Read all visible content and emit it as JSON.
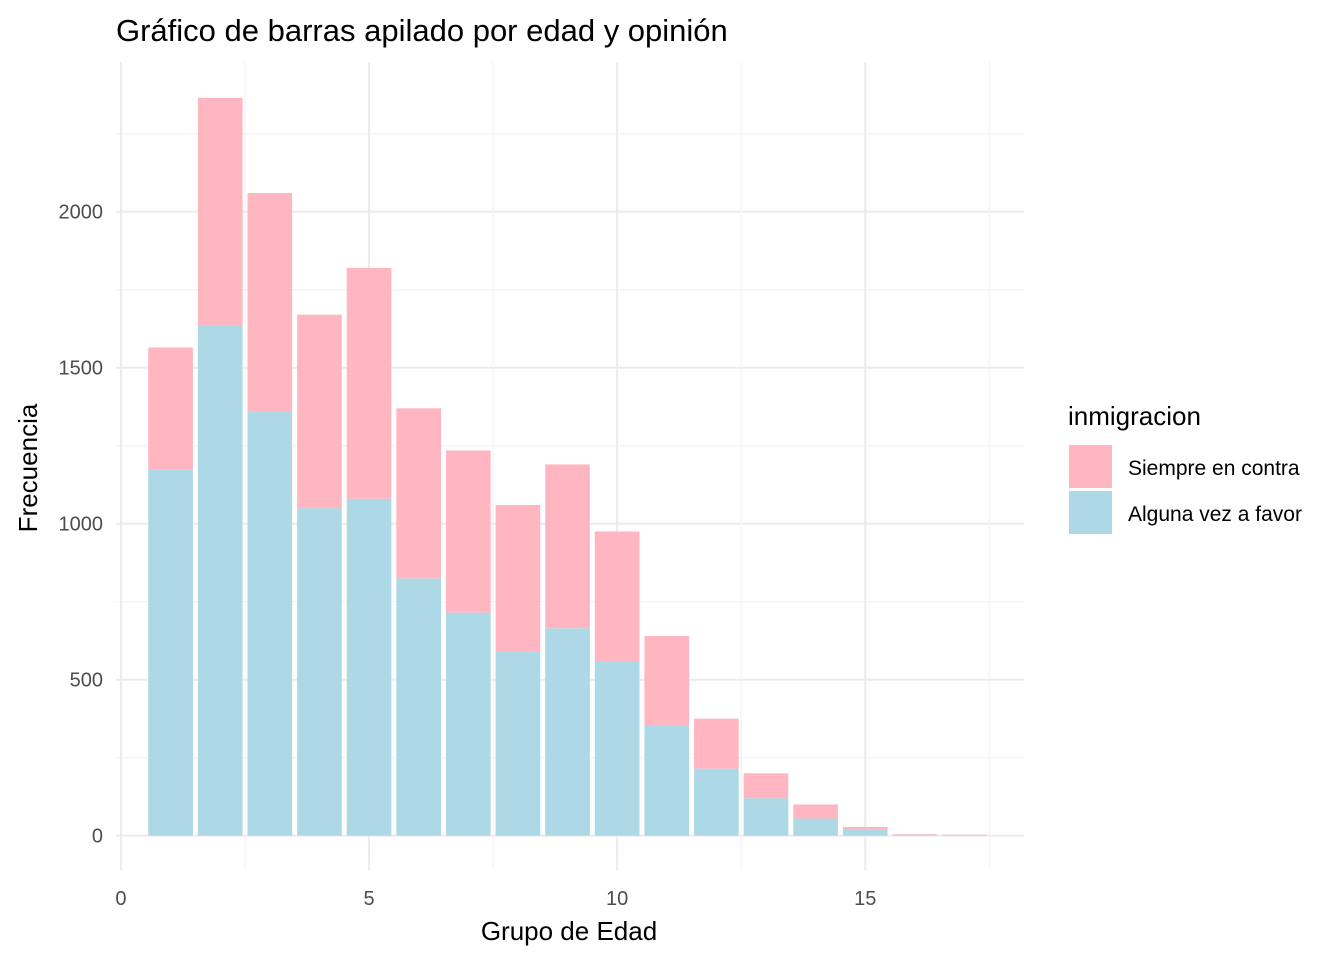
{
  "chart_data": {
    "type": "bar",
    "stacked": true,
    "title": "Gráfico de barras apilado por edad y opinión",
    "xlabel": "Grupo de Edad",
    "ylabel": "Frecuencia",
    "xlim": [
      -0.1,
      18.2
    ],
    "ylim": [
      -110,
      2480
    ],
    "xticks": [
      0,
      5,
      10,
      15
    ],
    "yticks": [
      0,
      500,
      1000,
      1500,
      2000
    ],
    "grid": true,
    "legend": {
      "title": "inmigracion",
      "placement": "right"
    },
    "x": [
      1,
      2,
      3,
      4,
      5,
      6,
      7,
      8,
      9,
      10,
      11,
      12,
      13,
      14,
      15,
      16,
      17
    ],
    "series": [
      {
        "name": "Alguna vez a favor",
        "color": "#ADD8E6",
        "values": [
          1175,
          1635,
          1360,
          1050,
          1080,
          825,
          715,
          590,
          665,
          560,
          355,
          215,
          120,
          55,
          20,
          3,
          2
        ]
      },
      {
        "name": "Siempre en contra",
        "color": "#FFB6C1",
        "values": [
          390,
          730,
          700,
          620,
          740,
          545,
          520,
          470,
          525,
          415,
          285,
          160,
          80,
          45,
          8,
          2,
          1
        ]
      }
    ],
    "legend_order": [
      "Siempre en contra",
      "Alguna vez a favor"
    ]
  }
}
